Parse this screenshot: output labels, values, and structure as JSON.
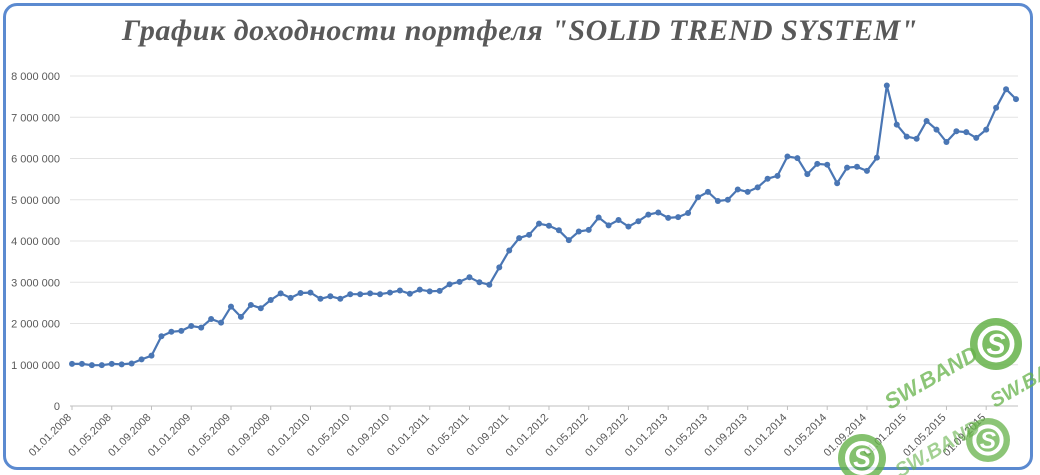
{
  "chart_data": {
    "type": "line",
    "title": "График доходности портфеля \"SOLID  TREND SYSTEM\"",
    "ylim": [
      0,
      8000000
    ],
    "yticks": [
      "0",
      "1 000 000",
      "2 000 000",
      "3 000 000",
      "4 000 000",
      "5 000 000",
      "6 000 000",
      "7 000 000",
      "8 000 000"
    ],
    "xticks": [
      "01.01.2008",
      "01.05.2008",
      "01.09.2008",
      "01.01.2009",
      "01.05.2009",
      "01.09.2009",
      "01.01.2010",
      "01.05.2010",
      "01.09.2010",
      "01.01.2011",
      "01.05.2011",
      "01.09.2011",
      "01.01.2012",
      "01.05.2012",
      "01.09.2012",
      "01.01.2013",
      "01.05.2013",
      "01.09.2013",
      "01.01.2014",
      "01.05.2014",
      "01.09.2014",
      "01.01.2015",
      "01.05.2015",
      "01.09.2015"
    ],
    "grid": true,
    "line_color": "#4a76b4",
    "series": [
      {
        "values": [
          1020000,
          1020000,
          990000,
          990000,
          1020000,
          1010000,
          1030000,
          1130000,
          1220000,
          1690000,
          1800000,
          1820000,
          1940000,
          1900000,
          2110000,
          2020000,
          2410000,
          2160000,
          2450000,
          2370000,
          2570000,
          2730000,
          2620000,
          2740000,
          2750000,
          2600000,
          2660000,
          2600000,
          2710000,
          2710000,
          2730000,
          2710000,
          2750000,
          2800000,
          2720000,
          2820000,
          2780000,
          2790000,
          2950000,
          3010000,
          3120000,
          3000000,
          2940000,
          3360000,
          3770000,
          4070000,
          4150000,
          4420000,
          4370000,
          4260000,
          4020000,
          4230000,
          4270000,
          4570000,
          4380000,
          4510000,
          4350000,
          4480000,
          4640000,
          4690000,
          4560000,
          4580000,
          4680000,
          5060000,
          5190000,
          4970000,
          5000000,
          5250000,
          5190000,
          5300000,
          5510000,
          5580000,
          6050000,
          6010000,
          5620000,
          5870000,
          5850000,
          5400000,
          5780000,
          5800000,
          5700000,
          6020000,
          7770000,
          6820000,
          6530000,
          6480000,
          6910000,
          6700000,
          6400000,
          6660000,
          6640000,
          6500000,
          6700000,
          7230000,
          7680000,
          7440000
        ]
      }
    ]
  },
  "watermark": {
    "text": "SW.BAND",
    "color": "#66b24a"
  }
}
